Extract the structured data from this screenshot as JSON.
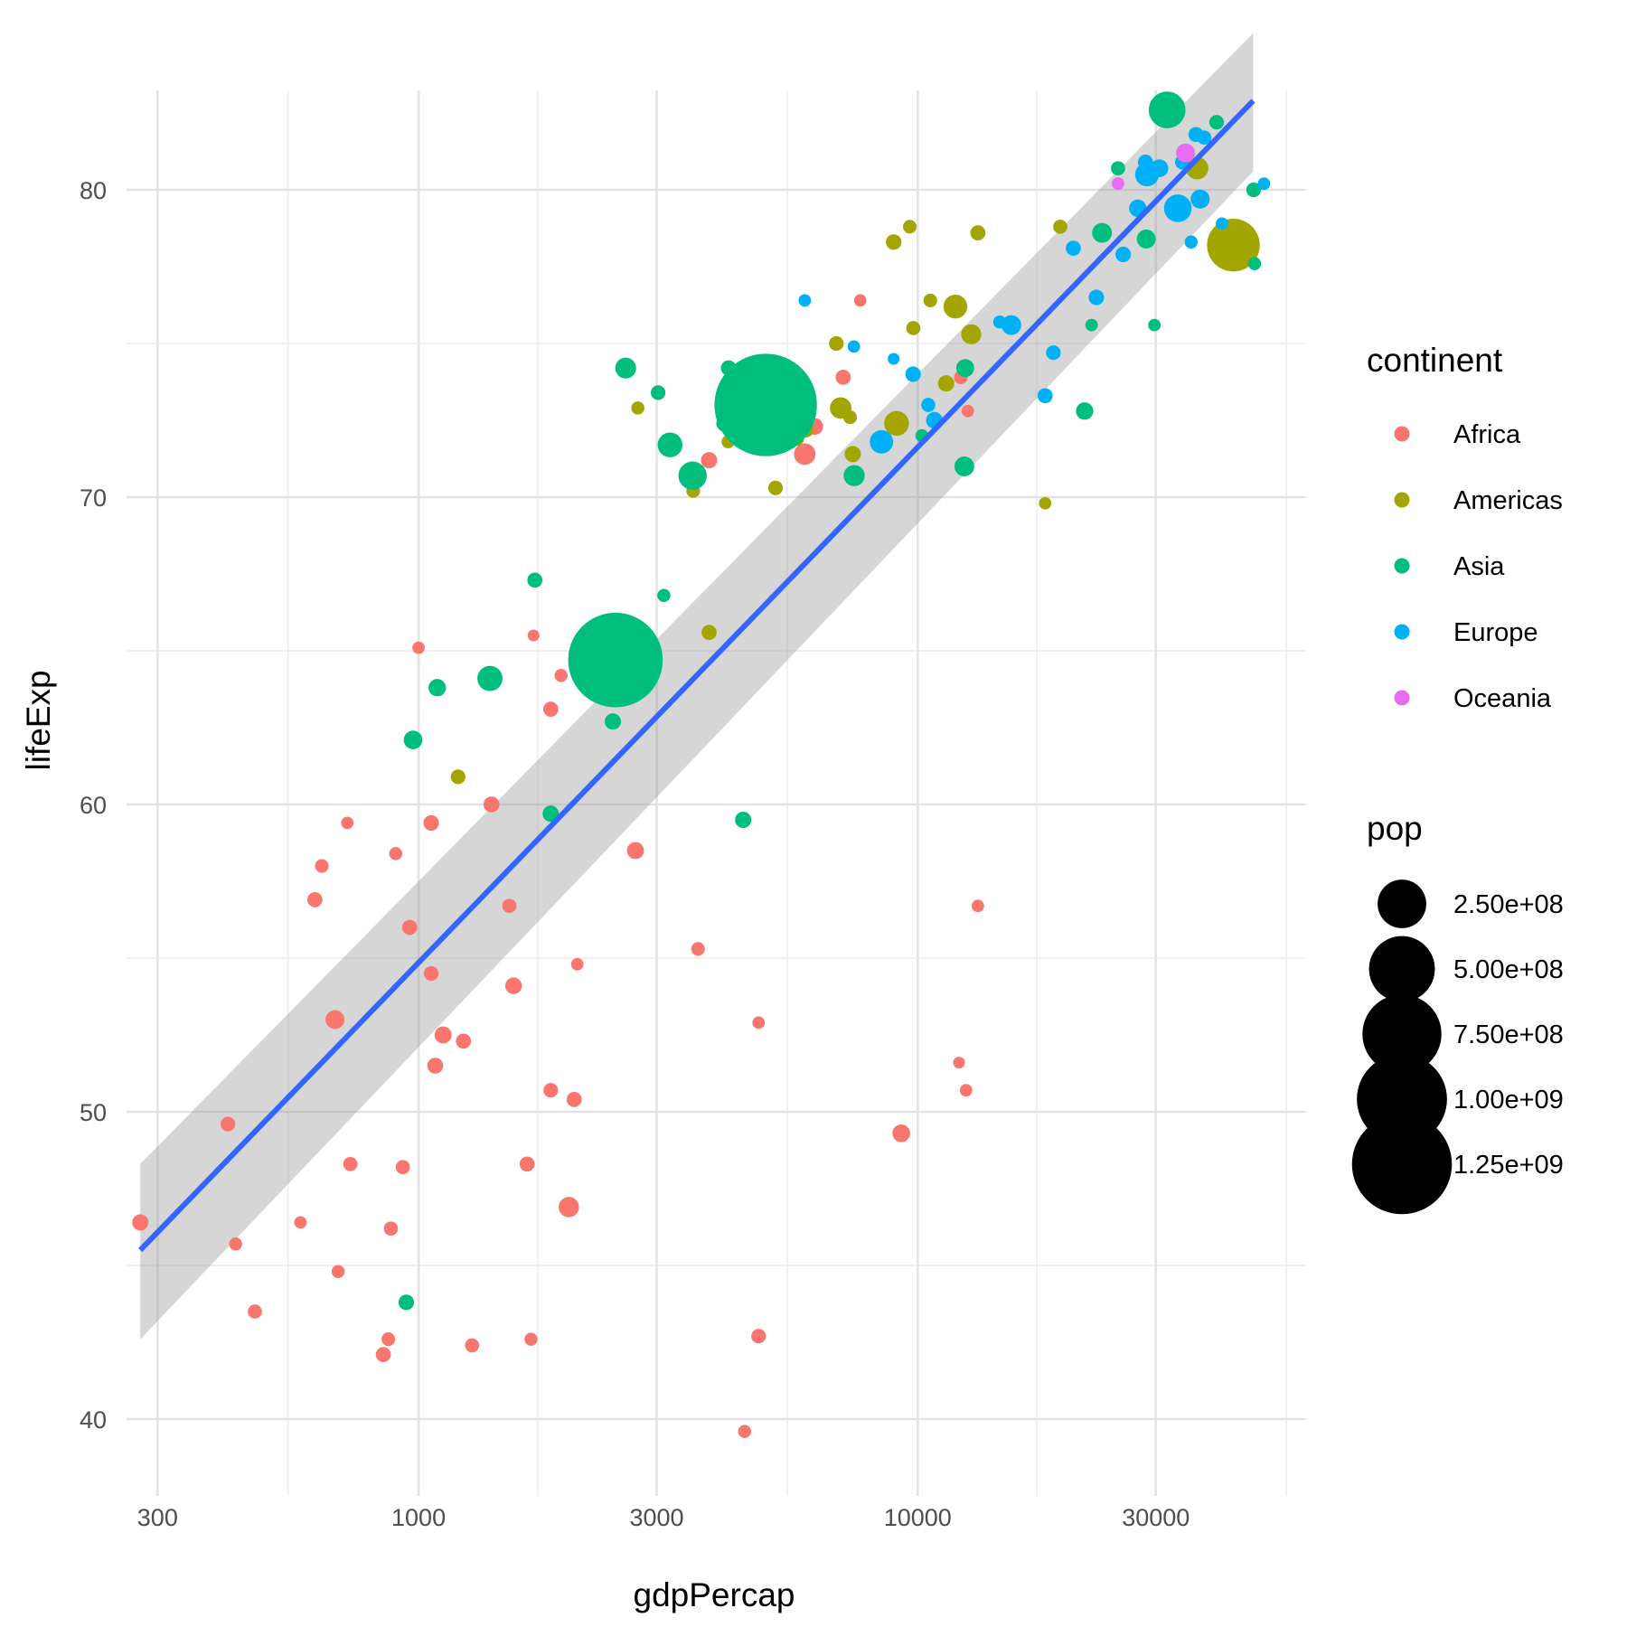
{
  "chart_data": {
    "type": "scatter",
    "xlabel": "gdpPercap",
    "ylabel": "lifeExp",
    "x_scale": "log10",
    "xlim": [
      260,
      60000
    ],
    "ylim": [
      37.5,
      85
    ],
    "x_ticks": [
      300,
      1000,
      3000,
      10000,
      30000
    ],
    "x_tick_labels": [
      "300",
      "1000",
      "3000",
      "10000",
      "30000"
    ],
    "x_minor_ticks": [
      547.7,
      1732,
      5477,
      17320,
      54770
    ],
    "y_ticks": [
      40,
      50,
      60,
      70,
      80
    ],
    "y_tick_labels": [
      "40",
      "50",
      "60",
      "70",
      "80"
    ],
    "y_minor_ticks": [
      45,
      55,
      65,
      75
    ],
    "grid": true,
    "legend_position": "right",
    "color_legend": {
      "title": "continent",
      "entries": [
        {
          "label": "Africa",
          "color": "#F8766D"
        },
        {
          "label": "Americas",
          "color": "#A3A500"
        },
        {
          "label": "Asia",
          "color": "#00BF7D"
        },
        {
          "label": "Europe",
          "color": "#00B0F6"
        },
        {
          "label": "Oceania",
          "color": "#E76BF3"
        }
      ]
    },
    "size_legend": {
      "title": "pop",
      "entries": [
        {
          "label": "2.50e+08",
          "value": 250000000
        },
        {
          "label": "5.00e+08",
          "value": 500000000
        },
        {
          "label": "7.50e+08",
          "value": 750000000
        },
        {
          "label": "1.00e+09",
          "value": 1000000000
        },
        {
          "label": "1.25e+09",
          "value": 1250000000
        }
      ]
    },
    "trend_line": {
      "method": "lm",
      "color": "#3366FF",
      "band_color": "#999999",
      "x": [
        277,
        47000
      ],
      "y": [
        45.5,
        82.9
      ],
      "ci_lower": [
        42.6,
        80.6
      ],
      "ci_upper": [
        48.3,
        85.1
      ]
    },
    "series": [
      {
        "name": "Africa",
        "color": "#F8766D",
        "points": [
          [
            277,
            46.4,
            12000000
          ],
          [
            415,
            49.6,
            8000000
          ],
          [
            430,
            45.7,
            5000000
          ],
          [
            470,
            43.5,
            7000000
          ],
          [
            580,
            46.4,
            4000000
          ],
          [
            620,
            56.9,
            9000000
          ],
          [
            640,
            58.0,
            6000000
          ],
          [
            680,
            53.0,
            20000000
          ],
          [
            690,
            44.8,
            5000000
          ],
          [
            720,
            59.4,
            4000000
          ],
          [
            730,
            48.3,
            7000000
          ],
          [
            850,
            42.1,
            9000000
          ],
          [
            870,
            42.6,
            6000000
          ],
          [
            880,
            46.2,
            7000000
          ],
          [
            900,
            58.4,
            5000000
          ],
          [
            930,
            48.2,
            7000000
          ],
          [
            960,
            56.0,
            9000000
          ],
          [
            1000,
            65.1,
            4000000
          ],
          [
            1060,
            54.5,
            8000000
          ],
          [
            1060,
            59.4,
            10000000
          ],
          [
            1080,
            51.5,
            11000000
          ],
          [
            1120,
            52.5,
            14000000
          ],
          [
            1230,
            52.3,
            9000000
          ],
          [
            1280,
            42.4,
            7000000
          ],
          [
            1400,
            60.0,
            11000000
          ],
          [
            1520,
            56.7,
            7000000
          ],
          [
            1550,
            54.1,
            13000000
          ],
          [
            1650,
            48.3,
            9000000
          ],
          [
            1680,
            42.6,
            5000000
          ],
          [
            1700,
            65.5,
            3000000
          ],
          [
            1840,
            63.1,
            9000000
          ],
          [
            1840,
            50.7,
            8000000
          ],
          [
            1930,
            64.2,
            5000000
          ],
          [
            2050,
            50.4,
            9000000
          ],
          [
            2080,
            54.8,
            4000000
          ],
          [
            2000,
            46.9,
            25000000
          ],
          [
            2720,
            58.5,
            14000000
          ],
          [
            3630,
            55.3,
            6000000
          ],
          [
            3820,
            71.2,
            12000000
          ],
          [
            4500,
            39.6,
            5000000
          ],
          [
            4800,
            52.9,
            4000000
          ],
          [
            4800,
            42.7,
            8000000
          ],
          [
            6220,
            72.3,
            13000000
          ],
          [
            5940,
            71.4,
            30000000
          ],
          [
            7090,
            73.9,
            9000000
          ],
          [
            7670,
            76.4,
            4000000
          ],
          [
            9270,
            49.3,
            16000000
          ],
          [
            12200,
            73.9,
            6000000
          ],
          [
            12100,
            51.6,
            3000000
          ],
          [
            12500,
            50.7,
            4000000
          ],
          [
            12600,
            72.8,
            4000000
          ],
          [
            13200,
            56.7,
            4000000
          ]
        ]
      },
      {
        "name": "Americas",
        "color": "#A3A500",
        "points": [
          [
            1200,
            60.9,
            8000000
          ],
          [
            2750,
            72.9,
            5000000
          ],
          [
            3550,
            70.2,
            6000000
          ],
          [
            3820,
            65.6,
            9000000
          ],
          [
            4170,
            71.8,
            5000000
          ],
          [
            5190,
            70.3,
            8000000
          ],
          [
            5730,
            71.9,
            7000000
          ],
          [
            5970,
            72.2,
            11000000
          ],
          [
            6870,
            75.0,
            8000000
          ],
          [
            7010,
            72.9,
            30000000
          ],
          [
            7320,
            72.6,
            6000000
          ],
          [
            7410,
            71.4,
            12000000
          ],
          [
            8950,
            78.3,
            10000000
          ],
          [
            9070,
            72.4,
            45000000
          ],
          [
            9640,
            78.8,
            6000000
          ],
          [
            9800,
            75.5,
            7000000
          ],
          [
            10600,
            76.4,
            6000000
          ],
          [
            11400,
            73.7,
            12000000
          ],
          [
            11900,
            76.2,
            40000000
          ],
          [
            12800,
            75.3,
            24000000
          ],
          [
            13200,
            78.6,
            9000000
          ],
          [
            18000,
            69.8,
            4000000
          ],
          [
            19300,
            78.8,
            7000000
          ],
          [
            36300,
            80.7,
            33000000
          ],
          [
            42900,
            78.2,
            301000000
          ]
        ]
      },
      {
        "name": "Asia",
        "color": "#00BF7D",
        "points": [
          [
            975,
            62.1,
            19000000
          ],
          [
            945,
            43.8,
            10000000
          ],
          [
            1090,
            63.8,
            15000000
          ],
          [
            1390,
            64.1,
            47000000
          ],
          [
            1710,
            67.3,
            9000000
          ],
          [
            1840,
            59.7,
            12000000
          ],
          [
            2450,
            62.7,
            12000000
          ],
          [
            2480,
            64.7,
            1110000000
          ],
          [
            2600,
            74.2,
            27000000
          ],
          [
            2740,
            65.5,
            50000000
          ],
          [
            3020,
            73.4,
            8000000
          ],
          [
            3100,
            66.8,
            5000000
          ],
          [
            3190,
            71.7,
            45000000
          ],
          [
            3540,
            70.7,
            65000000
          ],
          [
            4100,
            72.4,
            12000000
          ],
          [
            4180,
            74.2,
            10000000
          ],
          [
            4470,
            59.5,
            12000000
          ],
          [
            4500,
            72.6,
            8000000
          ],
          [
            4960,
            73.0,
            1320000000
          ],
          [
            7460,
            70.7,
            28000000
          ],
          [
            10200,
            72.0,
            5000000
          ],
          [
            12400,
            71.0,
            23000000
          ],
          [
            12450,
            74.2,
            17000000
          ],
          [
            21600,
            72.8,
            15000000
          ],
          [
            22300,
            75.6,
            4000000
          ],
          [
            23400,
            78.6,
            23000000
          ],
          [
            25200,
            80.7,
            7000000
          ],
          [
            28700,
            78.4,
            20000000
          ],
          [
            29800,
            75.6,
            4000000
          ],
          [
            31600,
            82.6,
            127000000
          ],
          [
            39700,
            82.2,
            8000000
          ],
          [
            47100,
            80.0,
            8000000
          ],
          [
            47300,
            77.6,
            5000000
          ]
        ]
      },
      {
        "name": "Europe",
        "color": "#00B0F6",
        "points": [
          [
            5940,
            76.4,
            4000000
          ],
          [
            7450,
            74.9,
            4000000
          ],
          [
            8460,
            71.8,
            38000000
          ],
          [
            8950,
            74.5,
            3000000
          ],
          [
            9790,
            74.0,
            10000000
          ],
          [
            10500,
            73.0,
            7000000
          ],
          [
            10800,
            72.5,
            13000000
          ],
          [
            14600,
            75.7,
            5000000
          ],
          [
            15400,
            75.6,
            23000000
          ],
          [
            18000,
            73.3,
            9000000
          ],
          [
            18700,
            74.7,
            8000000
          ],
          [
            20500,
            78.1,
            9000000
          ],
          [
            22800,
            76.5,
            10000000
          ],
          [
            25800,
            77.9,
            10000000
          ],
          [
            27600,
            79.4,
            15000000
          ],
          [
            28600,
            80.9,
            9000000
          ],
          [
            28800,
            80.5,
            40000000
          ],
          [
            30500,
            80.7,
            16000000
          ],
          [
            33200,
            79.4,
            61000000
          ],
          [
            33900,
            80.9,
            8000000
          ],
          [
            35300,
            78.3,
            5000000
          ],
          [
            36100,
            81.8,
            9000000
          ],
          [
            36800,
            79.7,
            20000000
          ],
          [
            37500,
            81.7,
            7000000
          ],
          [
            40700,
            78.9,
            4000000
          ],
          [
            49400,
            80.2,
            4000000
          ]
        ]
      },
      {
        "name": "Oceania",
        "color": "#E76BF3",
        "points": [
          [
            25200,
            80.2,
            4000000
          ],
          [
            34400,
            81.2,
            20000000
          ]
        ]
      }
    ]
  }
}
